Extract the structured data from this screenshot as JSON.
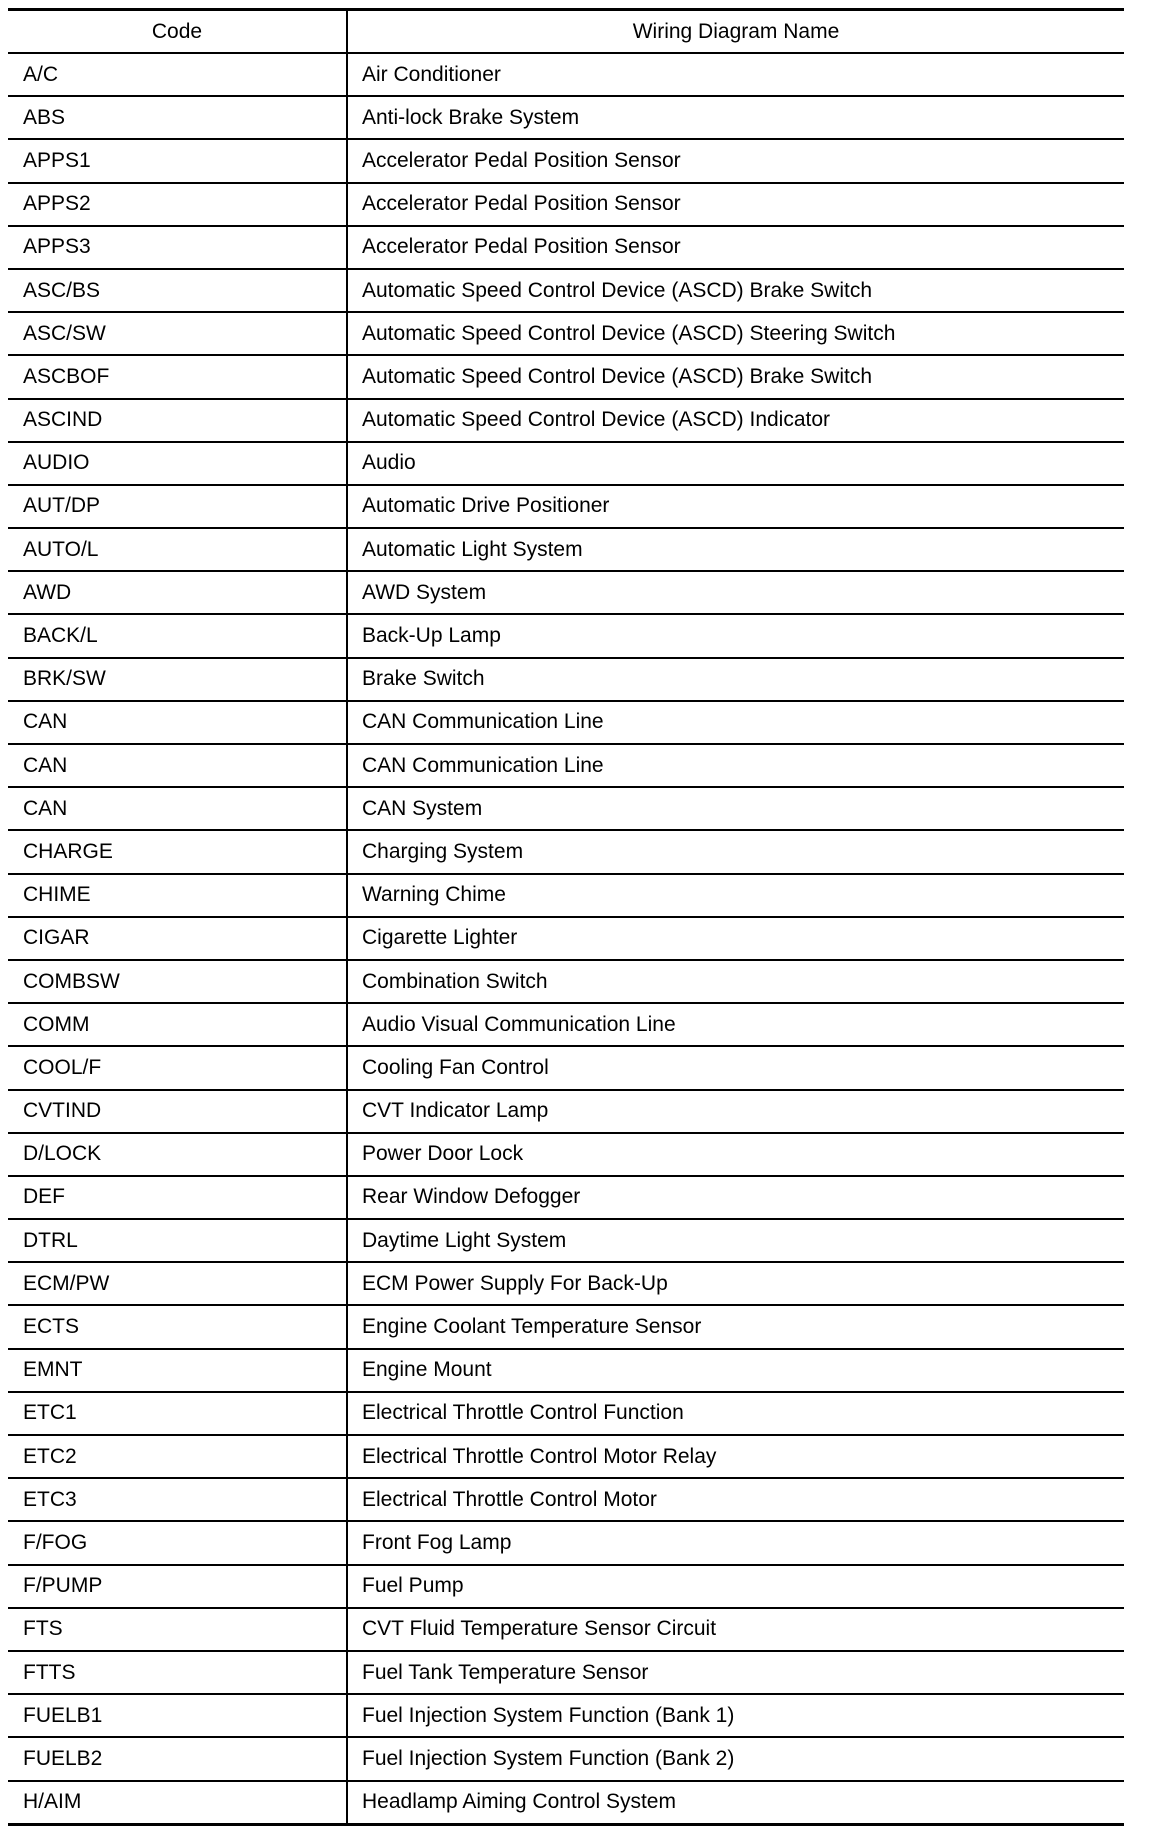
{
  "table": {
    "headers": [
      "Code",
      "Wiring Diagram Name"
    ],
    "rows": [
      [
        "A/C",
        "Air Conditioner"
      ],
      [
        "ABS",
        "Anti-lock Brake System"
      ],
      [
        "APPS1",
        "Accelerator Pedal Position Sensor"
      ],
      [
        "APPS2",
        "Accelerator Pedal Position Sensor"
      ],
      [
        "APPS3",
        "Accelerator Pedal Position Sensor"
      ],
      [
        "ASC/BS",
        "Automatic Speed Control Device (ASCD) Brake Switch"
      ],
      [
        "ASC/SW",
        "Automatic Speed Control Device (ASCD) Steering Switch"
      ],
      [
        "ASCBOF",
        "Automatic Speed Control Device (ASCD) Brake Switch"
      ],
      [
        "ASCIND",
        "Automatic Speed Control Device (ASCD) Indicator"
      ],
      [
        "AUDIO",
        "Audio"
      ],
      [
        "AUT/DP",
        "Automatic Drive Positioner"
      ],
      [
        "AUTO/L",
        "Automatic Light System"
      ],
      [
        "AWD",
        "AWD System"
      ],
      [
        "BACK/L",
        "Back-Up Lamp"
      ],
      [
        "BRK/SW",
        "Brake Switch"
      ],
      [
        "CAN",
        "CAN Communication Line"
      ],
      [
        "CAN",
        "CAN Communication Line"
      ],
      [
        "CAN",
        "CAN System"
      ],
      [
        "CHARGE",
        "Charging System"
      ],
      [
        "CHIME",
        "Warning Chime"
      ],
      [
        "CIGAR",
        "Cigarette Lighter"
      ],
      [
        "COMBSW",
        "Combination Switch"
      ],
      [
        "COMM",
        "Audio Visual Communication Line"
      ],
      [
        "COOL/F",
        "Cooling Fan Control"
      ],
      [
        "CVTIND",
        "CVT Indicator Lamp"
      ],
      [
        "D/LOCK",
        "Power Door Lock"
      ],
      [
        "DEF",
        "Rear Window Defogger"
      ],
      [
        "DTRL",
        "Daytime Light System"
      ],
      [
        "ECM/PW",
        "ECM Power Supply For Back-Up"
      ],
      [
        "ECTS",
        "Engine Coolant Temperature Sensor"
      ],
      [
        "EMNT",
        "Engine Mount"
      ],
      [
        "ETC1",
        "Electrical Throttle Control Function"
      ],
      [
        "ETC2",
        "Electrical Throttle Control Motor Relay"
      ],
      [
        "ETC3",
        "Electrical Throttle Control Motor"
      ],
      [
        "F/FOG",
        "Front Fog Lamp"
      ],
      [
        "F/PUMP",
        "Fuel Pump"
      ],
      [
        "FTS",
        "CVT Fluid Temperature Sensor Circuit"
      ],
      [
        "FTTS",
        "Fuel Tank Temperature Sensor"
      ],
      [
        "FUELB1",
        "Fuel Injection System Function (Bank 1)"
      ],
      [
        "FUELB2",
        "Fuel Injection System Function (Bank 2)"
      ],
      [
        "H/AIM",
        "Headlamp Aiming Control System"
      ]
    ]
  }
}
